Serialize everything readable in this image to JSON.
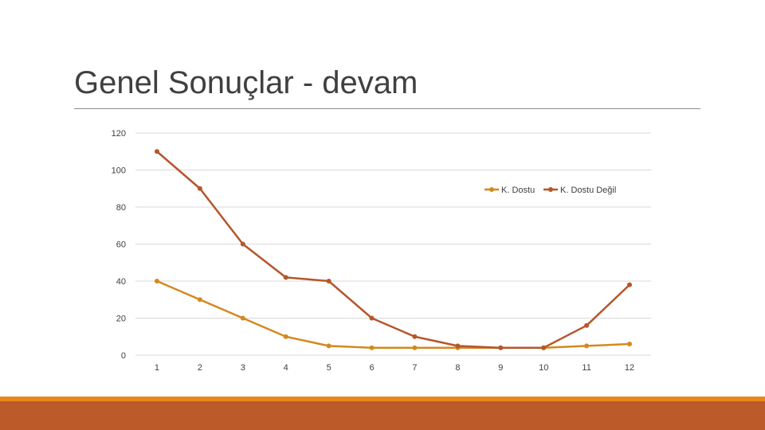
{
  "slide": {
    "title": "Genel Sonuçlar - devam"
  },
  "colors": {
    "series1": "#d4891f",
    "series2": "#b5562b",
    "footer_thin": "#e8861a",
    "footer_band": "#bc5a2a",
    "grid": "#d9d9d9",
    "rule": "#8c8c8c"
  },
  "chart_data": {
    "type": "line",
    "x": [
      "1",
      "2",
      "3",
      "4",
      "5",
      "6",
      "7",
      "8",
      "9",
      "10",
      "11",
      "12"
    ],
    "series": [
      {
        "name": "K. Dostu",
        "values": [
          40,
          30,
          20,
          10,
          5,
          4,
          4,
          4,
          4,
          4,
          5,
          6
        ]
      },
      {
        "name": "K. Dostu Değil",
        "values": [
          110,
          90,
          60,
          42,
          40,
          20,
          10,
          5,
          4,
          4,
          16,
          38
        ]
      }
    ],
    "yticks": [
      "0",
      "20",
      "40",
      "60",
      "80",
      "100",
      "120"
    ],
    "ylim": [
      0,
      120
    ],
    "grid": true,
    "legend": "top-right",
    "markers": true
  }
}
